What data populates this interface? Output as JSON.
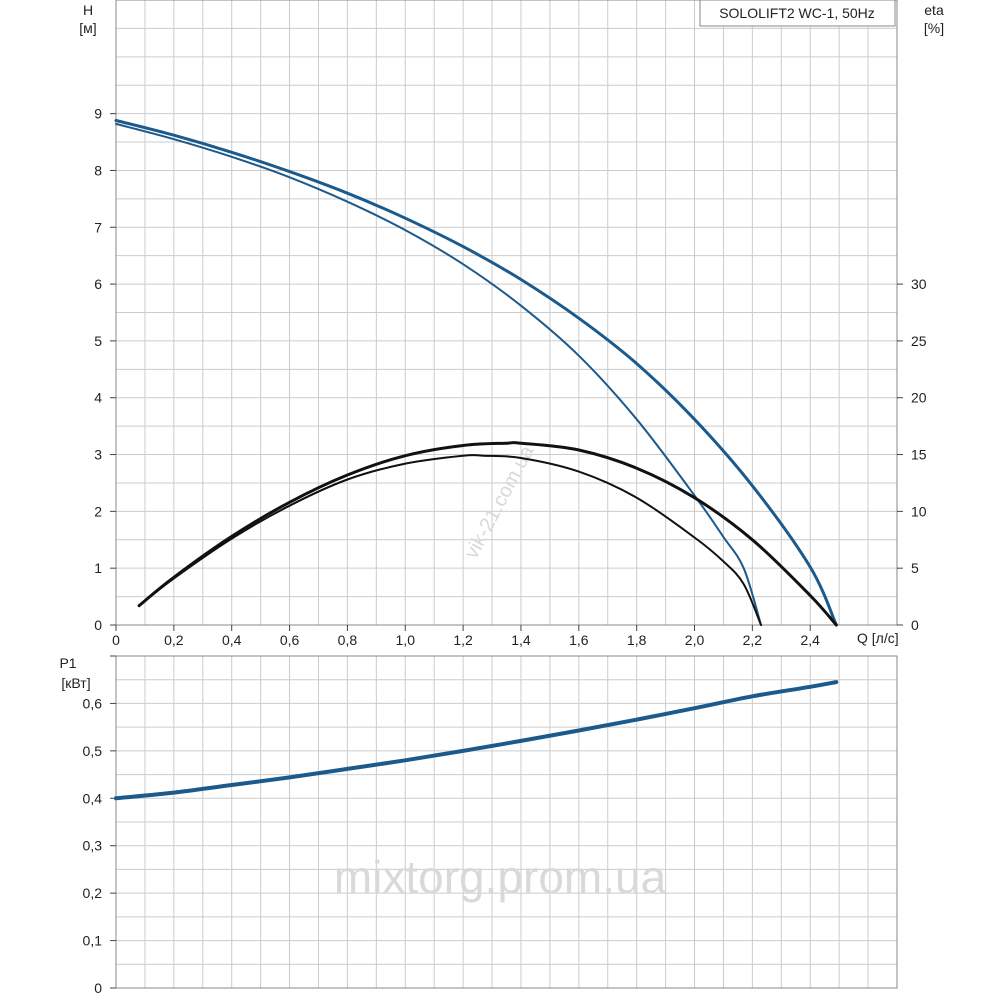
{
  "title": "SOLOLIFT2 WC-1, 50Hz",
  "watermarks": [
    "vik-21.com.ua",
    "mixtorg.prom.ua"
  ],
  "colors": {
    "head": "#1c5a8c",
    "eta": "#111111",
    "power": "#1c5a8c",
    "grid": "#cccccc",
    "frame": "#888888"
  },
  "chart_data": [
    {
      "type": "line",
      "title": "SOLOLIFT2 WC-1, 50Hz",
      "xlabel": "Q [л/с]",
      "ylabel": "H [м]",
      "y2label": "eta [%]",
      "xlim": [
        0,
        2.7
      ],
      "ylim": [
        0,
        11
      ],
      "y2lim": [
        0,
        55
      ],
      "grid": true,
      "xticks": [
        "0",
        "0,2",
        "0,4",
        "0,6",
        "0,8",
        "1,0",
        "1,2",
        "1,4",
        "1,6",
        "1,8",
        "2,0",
        "2,2",
        "2,4"
      ],
      "yticks": [
        "0",
        "1",
        "2",
        "3",
        "4",
        "5",
        "6",
        "7",
        "8",
        "9"
      ],
      "y2ticks": [
        "0",
        "5",
        "10",
        "15",
        "20",
        "25",
        "30"
      ],
      "series": [
        {
          "axis": "y",
          "kind": "head",
          "width": 3,
          "x": [
            0,
            0.2,
            0.4,
            0.6,
            0.8,
            1.0,
            1.2,
            1.4,
            1.6,
            1.8,
            2.0,
            2.2,
            2.4,
            2.49
          ],
          "y": [
            8.88,
            8.62,
            8.32,
            7.98,
            7.6,
            7.16,
            6.66,
            6.08,
            5.4,
            4.6,
            3.62,
            2.45,
            1.02,
            0.0
          ]
        },
        {
          "axis": "y",
          "kind": "head",
          "width": 2,
          "x": [
            0,
            0.2,
            0.4,
            0.6,
            0.8,
            1.0,
            1.2,
            1.4,
            1.6,
            1.8,
            2.0,
            2.1,
            2.17,
            2.23
          ],
          "y": [
            8.82,
            8.55,
            8.24,
            7.88,
            7.45,
            6.95,
            6.35,
            5.62,
            4.74,
            3.62,
            2.28,
            1.55,
            1.0,
            0.0
          ]
        },
        {
          "axis": "y2",
          "kind": "eta",
          "width": 3,
          "x": [
            0.08,
            0.2,
            0.4,
            0.6,
            0.8,
            1.0,
            1.2,
            1.35,
            1.4,
            1.6,
            1.8,
            2.0,
            2.2,
            2.4,
            2.49
          ],
          "y": [
            1.7,
            4.2,
            7.8,
            10.8,
            13.2,
            14.9,
            15.8,
            16.0,
            16.0,
            15.4,
            13.8,
            11.2,
            7.5,
            2.6,
            0.0
          ]
        },
        {
          "axis": "y2",
          "kind": "eta",
          "width": 2,
          "x": [
            0.08,
            0.2,
            0.4,
            0.6,
            0.8,
            1.0,
            1.2,
            1.27,
            1.4,
            1.6,
            1.8,
            2.0,
            2.1,
            2.17,
            2.23
          ],
          "y": [
            1.7,
            4.1,
            7.6,
            10.5,
            12.8,
            14.2,
            14.9,
            14.9,
            14.7,
            13.5,
            11.2,
            7.7,
            5.6,
            3.6,
            0.0
          ]
        }
      ]
    },
    {
      "type": "line",
      "xlabel": "",
      "ylabel": "P1 [кВт]",
      "xlim": [
        0,
        2.7
      ],
      "ylim": [
        0,
        0.7
      ],
      "grid": true,
      "yticks": [
        "0",
        "0,1",
        "0,2",
        "0,3",
        "0,4",
        "0,5",
        "0,6"
      ],
      "series": [
        {
          "axis": "y",
          "kind": "power",
          "width": 4,
          "x": [
            0,
            0.2,
            0.4,
            0.6,
            0.8,
            1.0,
            1.2,
            1.4,
            1.6,
            1.8,
            2.0,
            2.2,
            2.4,
            2.49
          ],
          "y": [
            0.4,
            0.412,
            0.428,
            0.444,
            0.462,
            0.48,
            0.5,
            0.521,
            0.543,
            0.566,
            0.59,
            0.615,
            0.635,
            0.645
          ]
        }
      ]
    }
  ]
}
